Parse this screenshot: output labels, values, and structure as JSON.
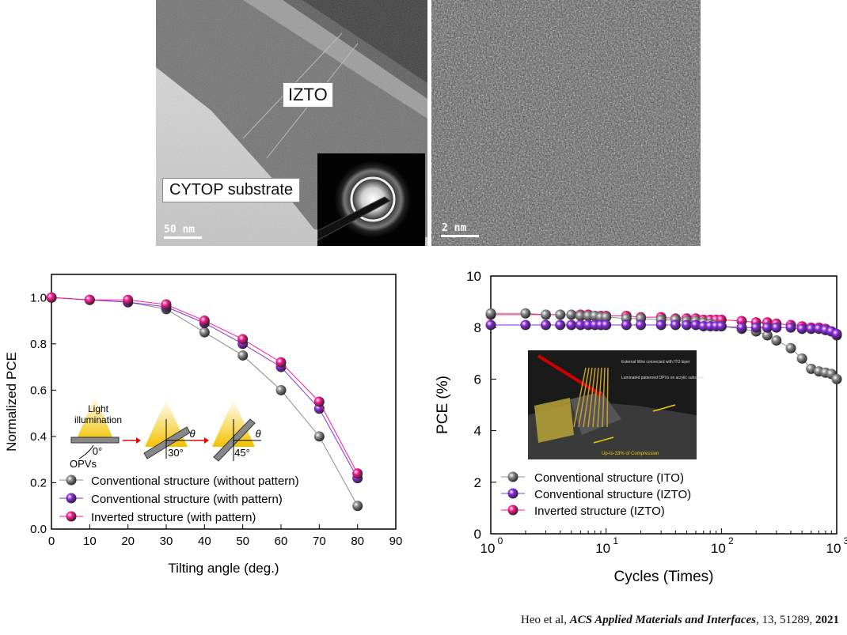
{
  "tem_left": {
    "layer_label": "IZTO",
    "substrate_label": "CYTOP substrate",
    "scale_bar": "50 nm"
  },
  "tem_right": {
    "scale_bar": "2 nm"
  },
  "chart_data": [
    {
      "type": "line",
      "xlabel": "Tilting angle (deg.)",
      "ylabel": "Normalized PCE",
      "xlim": [
        0,
        90
      ],
      "ylim": [
        0.0,
        1.1
      ],
      "xticks": [
        0,
        10,
        20,
        30,
        40,
        50,
        60,
        70,
        80,
        90
      ],
      "yticks": [
        0.0,
        0.2,
        0.4,
        0.6,
        0.8,
        1.0
      ],
      "x": [
        0,
        10,
        20,
        30,
        40,
        50,
        60,
        70,
        80
      ],
      "series": [
        {
          "name": "Conventional structure (without pattern)",
          "color": "#8c8c8c",
          "values": [
            1.0,
            0.99,
            0.98,
            0.95,
            0.85,
            0.75,
            0.6,
            0.4,
            0.1
          ]
        },
        {
          "name": "Conventional structure (with pattern)",
          "color": "#8a2be2",
          "values": [
            1.0,
            0.99,
            0.98,
            0.96,
            0.89,
            0.8,
            0.7,
            0.52,
            0.22
          ]
        },
        {
          "name": "Inverted structure (with pattern)",
          "color": "#ff1a8c",
          "values": [
            1.0,
            0.99,
            0.99,
            0.97,
            0.9,
            0.82,
            0.72,
            0.55,
            0.24
          ]
        }
      ],
      "legend": "bottom-left",
      "inset": {
        "light_label": "Light\nillumination",
        "device_label": "OPVs",
        "angles": [
          "0°",
          "30°",
          "45°"
        ],
        "theta": "θ"
      }
    },
    {
      "type": "scatter",
      "xscale": "log",
      "xlabel": "Cycles (Times)",
      "ylabel": "PCE (%)",
      "xlim": [
        1,
        1000
      ],
      "ylim": [
        0,
        10
      ],
      "yticks": [
        0,
        2,
        4,
        6,
        8,
        10
      ],
      "xticks": [
        1,
        10,
        100,
        1000
      ],
      "xtick_labels": [
        "10",
        "10",
        "10",
        "10"
      ],
      "xtick_exponents": [
        "0",
        "1",
        "2",
        "3"
      ],
      "series": [
        {
          "name": "Conventional structure (ITO)",
          "color": "#8c8c8c",
          "x": [
            1,
            2,
            3,
            4,
            5,
            6,
            7,
            8,
            9,
            10,
            15,
            20,
            30,
            40,
            50,
            60,
            70,
            80,
            90,
            100,
            150,
            200,
            250,
            300,
            400,
            500,
            600,
            700,
            800,
            900,
            1000
          ],
          "values": [
            8.55,
            8.55,
            8.5,
            8.5,
            8.5,
            8.45,
            8.45,
            8.45,
            8.4,
            8.4,
            8.35,
            8.35,
            8.3,
            8.3,
            8.25,
            8.25,
            8.2,
            8.15,
            8.1,
            8.05,
            7.95,
            7.85,
            7.7,
            7.5,
            7.2,
            6.8,
            6.4,
            6.3,
            6.25,
            6.2,
            6.0
          ]
        },
        {
          "name": "Conventional structure (IZTO)",
          "color": "#8a2be2",
          "x": [
            1,
            2,
            3,
            4,
            5,
            6,
            7,
            8,
            9,
            10,
            15,
            20,
            30,
            40,
            50,
            60,
            70,
            80,
            90,
            100,
            150,
            200,
            250,
            300,
            400,
            500,
            600,
            700,
            800,
            900,
            1000
          ],
          "values": [
            8.1,
            8.1,
            8.1,
            8.1,
            8.1,
            8.1,
            8.1,
            8.1,
            8.1,
            8.1,
            8.1,
            8.1,
            8.1,
            8.1,
            8.1,
            8.1,
            8.05,
            8.05,
            8.05,
            8.05,
            8.0,
            8.0,
            8.0,
            8.0,
            8.0,
            7.95,
            7.95,
            7.95,
            7.9,
            7.85,
            7.75
          ]
        },
        {
          "name": "Inverted structure (IZTO)",
          "color": "#ff1a8c",
          "x": [
            1,
            6,
            7,
            8,
            9,
            10,
            15,
            20,
            30,
            40,
            50,
            60,
            70,
            80,
            90,
            100,
            150,
            200,
            250,
            300,
            400,
            500,
            600,
            700,
            800,
            900,
            1000
          ],
          "values": [
            8.5,
            8.5,
            8.5,
            8.45,
            8.45,
            8.45,
            8.45,
            8.4,
            8.4,
            8.35,
            8.35,
            8.35,
            8.3,
            8.3,
            8.3,
            8.3,
            8.25,
            8.2,
            8.2,
            8.15,
            8.1,
            8.05,
            8.0,
            8.0,
            7.95,
            7.85,
            7.7
          ]
        }
      ],
      "legend": "bottom-left",
      "inset_photo": {
        "annotations": [
          "External Wire connected with ITO layer",
          "Laminated patterned OPVs on acrylic substrate",
          "Up-to-33% of Compression"
        ]
      }
    }
  ],
  "citation": {
    "authors": "Heo et al, ",
    "journal": "ACS Applied Materials and Interfaces",
    "details": ", 13, 51289, ",
    "year": "2021"
  }
}
